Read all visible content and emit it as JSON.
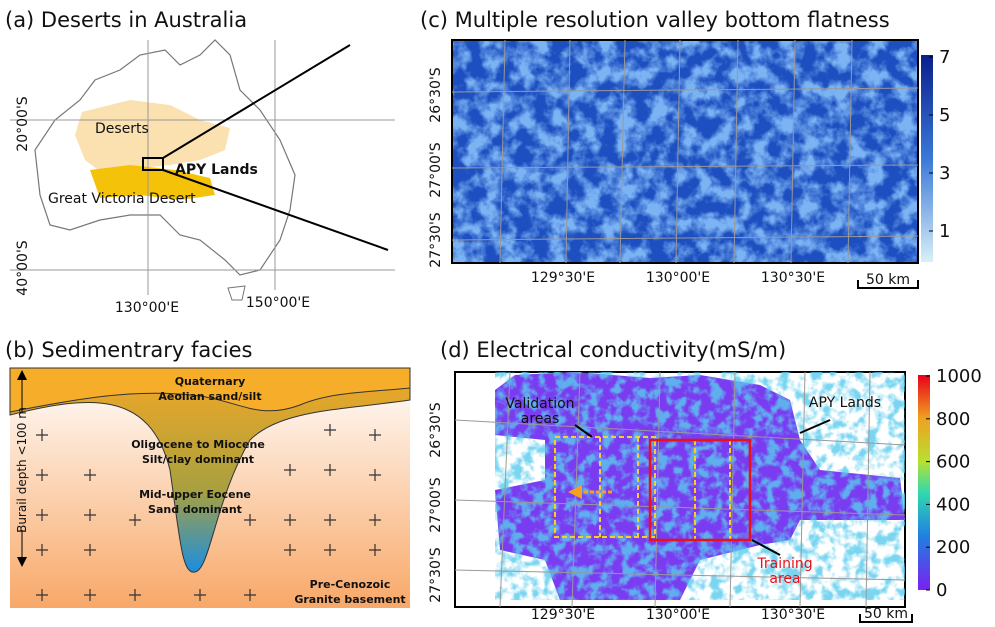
{
  "panel_a": {
    "title": "(a) Deserts in Australia",
    "lat_labels": [
      "20°00'S",
      "40°00'S"
    ],
    "lon_labels": [
      "130°00'E",
      "150°00'E"
    ],
    "deserts": "Deserts",
    "apy": "APY Lands",
    "gvd": "Great Victoria Desert"
  },
  "panel_b": {
    "title": "(b) Sedimentrary facies",
    "layers": [
      [
        "Quaternary",
        "Aeolian sand/silt"
      ],
      [
        "Oligocene to Miocene",
        "Silt/clay dominant"
      ],
      [
        "Mid-upper Eocene",
        "Sand dominant"
      ],
      [
        "Pre-Cenozoic",
        "Granite basement"
      ]
    ],
    "depth": "Burail depth <100 m"
  },
  "panel_c": {
    "title": "(c) Multiple resolution valley bottom flatness",
    "colorbar": [
      7,
      5,
      3,
      1
    ],
    "lat_labels": [
      "26°30'S",
      "27°00'S",
      "27°30'S"
    ],
    "lon_labels": [
      "129°30'E",
      "130°00'E",
      "130°30'E"
    ],
    "scale": "50 km"
  },
  "panel_d": {
    "title": "(d) Electrical conductivity(mS/m)",
    "colorbar": [
      1000,
      800,
      600,
      400,
      200,
      0
    ],
    "lat_labels": [
      "26°30'S",
      "27°00'S",
      "27°30'S"
    ],
    "lon_labels": [
      "129°30'E",
      "130°00'E",
      "130°30'E"
    ],
    "scale": "50 km",
    "validation": "Validation areas",
    "apy": "APY Lands",
    "training": "Training area"
  }
}
